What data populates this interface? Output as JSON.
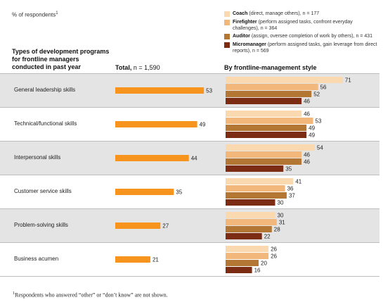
{
  "chart_data": {
    "type": "bar",
    "unit_label": "% of respondents",
    "unit_footnote_mark": "1",
    "category_header": "Types of development programs for frontline managers conducted in past year",
    "total_header": {
      "label": "Total,",
      "n": "n = 1,590"
    },
    "style_header": "By frontline-management style",
    "categories": [
      "General leadership skills",
      "Technical/functional skills",
      "Interpersonal skills",
      "Customer service skills",
      "Problem-solving skills",
      "Business acumen"
    ],
    "total": {
      "values": [
        53,
        49,
        44,
        35,
        27,
        21
      ],
      "color": "#f7941d"
    },
    "series": [
      {
        "name": "Coach",
        "description": "(direct, manage others), n = 177",
        "color": "#fad9b0",
        "values": [
          71,
          46,
          54,
          41,
          30,
          26
        ]
      },
      {
        "name": "Firefighter",
        "description": "(perform assigned tasks, confront everyday challenges), n = 364",
        "color": "#f2b77a",
        "values": [
          56,
          53,
          46,
          36,
          31,
          26
        ]
      },
      {
        "name": "Auditor",
        "description": "(assign, oversee completion of work by others), n = 431",
        "color": "#b47733",
        "values": [
          52,
          49,
          46,
          37,
          28,
          20
        ]
      },
      {
        "name": "Micromanager",
        "description": "(perform assigned tasks, gain leverage from direct reports), n = 569",
        "color": "#7b2c12",
        "values": [
          46,
          49,
          35,
          30,
          22,
          16
        ]
      }
    ],
    "shaded_rows": [
      0,
      2,
      4
    ],
    "footnote_mark": "1",
    "footnote": "Respondents who answered “other” or “don’t know” are not shown."
  }
}
